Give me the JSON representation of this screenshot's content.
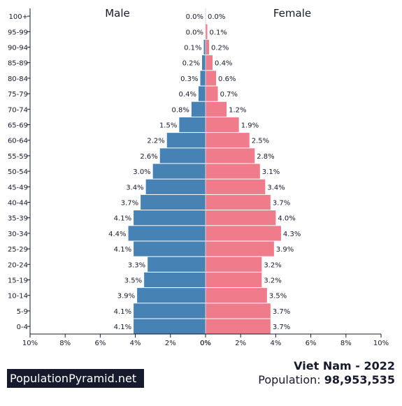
{
  "brand": "PopulationPyramid.net",
  "country_year": "Viet Nam - 2022",
  "population_label": "Population:",
  "population_value": "98,953,535",
  "colors": {
    "male": "#4682b4",
    "female": "#f07b8a",
    "text": "#161a2c"
  },
  "chart_data": {
    "type": "bar",
    "orientation": "horizontal",
    "layout": "population-pyramid",
    "categories": [
      "100+",
      "95-99",
      "90-94",
      "85-89",
      "80-84",
      "75-79",
      "70-74",
      "65-69",
      "60-64",
      "55-59",
      "50-54",
      "45-49",
      "40-44",
      "35-39",
      "30-34",
      "25-29",
      "20-24",
      "15-19",
      "10-14",
      "5-9",
      "0-4"
    ],
    "series": [
      {
        "name": "Male",
        "values": [
          0.0,
          0.0,
          0.1,
          0.2,
          0.3,
          0.4,
          0.8,
          1.5,
          2.2,
          2.6,
          3.0,
          3.4,
          3.7,
          4.1,
          4.4,
          4.1,
          3.3,
          3.5,
          3.9,
          4.1,
          4.1
        ],
        "labels": [
          "0.0%",
          "0.0%",
          "0.1%",
          "0.2%",
          "0.3%",
          "0.4%",
          "0.8%",
          "1.5%",
          "2.2%",
          "2.6%",
          "3.0%",
          "3.4%",
          "3.7%",
          "4.1%",
          "4.4%",
          "4.1%",
          "3.3%",
          "3.5%",
          "3.9%",
          "4.1%",
          "4.1%"
        ]
      },
      {
        "name": "Female",
        "values": [
          0.0,
          0.1,
          0.2,
          0.4,
          0.6,
          0.7,
          1.2,
          1.9,
          2.5,
          2.8,
          3.1,
          3.4,
          3.7,
          4.0,
          4.3,
          3.9,
          3.2,
          3.2,
          3.5,
          3.7,
          3.7
        ],
        "labels": [
          "0.0%",
          "0.1%",
          "0.2%",
          "0.4%",
          "0.6%",
          "0.7%",
          "1.2%",
          "1.9%",
          "2.5%",
          "2.8%",
          "3.1%",
          "3.4%",
          "3.7%",
          "4.0%",
          "4.3%",
          "3.9%",
          "3.2%",
          "3.2%",
          "3.5%",
          "3.7%",
          "3.7%"
        ]
      }
    ],
    "xlim": [
      0,
      10
    ],
    "male_ticks": [
      "10%",
      "8%",
      "6%",
      "4%",
      "2%",
      "0%"
    ],
    "female_ticks": [
      "0%",
      "2%",
      "4%",
      "6%",
      "8%",
      "10%"
    ],
    "grid": false
  }
}
